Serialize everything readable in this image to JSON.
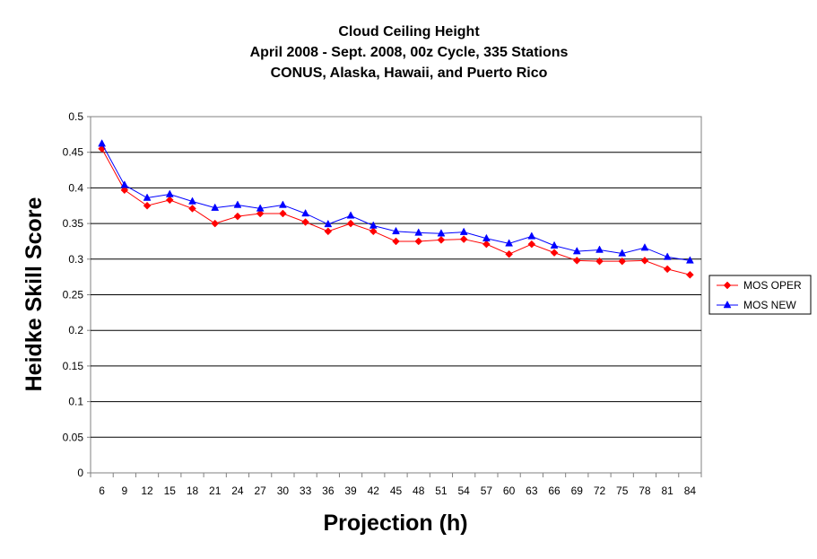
{
  "chart_data": {
    "type": "line",
    "title": [
      "Cloud Ceiling Height",
      "April 2008 - Sept. 2008, 00z Cycle, 335 Stations",
      "CONUS, Alaska, Hawaii, and Puerto Rico"
    ],
    "xlabel": "Projection (h)",
    "ylabel": "Heidke Skill Score",
    "ylim": [
      0,
      0.5
    ],
    "yticks": [
      "0",
      "0.05",
      "0.1",
      "0.15",
      "0.2",
      "0.25",
      "0.3",
      "0.35",
      "0.4",
      "0.45",
      "0.5"
    ],
    "grid": true,
    "legend_position": "right",
    "categories": [
      "6",
      "9",
      "12",
      "15",
      "18",
      "21",
      "24",
      "27",
      "30",
      "33",
      "36",
      "39",
      "42",
      "45",
      "48",
      "51",
      "54",
      "57",
      "60",
      "63",
      "66",
      "69",
      "72",
      "75",
      "78",
      "81",
      "84"
    ],
    "series": [
      {
        "name": "MOS OPER",
        "color": "#ff0000",
        "marker": "diamond",
        "values": [
          0.455,
          0.397,
          0.375,
          0.383,
          0.371,
          0.35,
          0.36,
          0.364,
          0.364,
          0.352,
          0.339,
          0.35,
          0.339,
          0.325,
          0.325,
          0.327,
          0.328,
          0.321,
          0.307,
          0.321,
          0.309,
          0.298,
          0.297,
          0.297,
          0.298,
          0.286,
          0.278
        ]
      },
      {
        "name": "MOS NEW",
        "color": "#0000ff",
        "marker": "triangle",
        "values": [
          0.462,
          0.404,
          0.386,
          0.391,
          0.381,
          0.372,
          0.376,
          0.371,
          0.376,
          0.364,
          0.349,
          0.361,
          0.347,
          0.339,
          0.337,
          0.336,
          0.338,
          0.329,
          0.322,
          0.332,
          0.319,
          0.311,
          0.313,
          0.308,
          0.316,
          0.303,
          0.298
        ]
      }
    ]
  }
}
